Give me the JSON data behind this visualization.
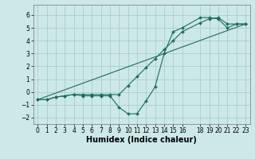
{
  "background_color": "#cce8e8",
  "grid_color": "#aacece",
  "line_color": "#1a6e60",
  "xlabel": "Humidex (Indice chaleur)",
  "xlabel_fontsize": 7,
  "tick_fontsize": 5.5,
  "xlim": [
    -0.5,
    23.5
  ],
  "ylim": [
    -2.5,
    6.8
  ],
  "yticks": [
    -2,
    -1,
    0,
    1,
    2,
    3,
    4,
    5,
    6
  ],
  "xticks": [
    0,
    1,
    2,
    3,
    4,
    5,
    6,
    7,
    8,
    9,
    10,
    11,
    12,
    13,
    14,
    15,
    16,
    18,
    19,
    20,
    21,
    22,
    23
  ],
  "line1_x": [
    0,
    1,
    2,
    3,
    4,
    5,
    6,
    7,
    8,
    9,
    10,
    11,
    12,
    13,
    14,
    15,
    16,
    18,
    19,
    20,
    21,
    22,
    23
  ],
  "line1_y": [
    -0.6,
    -0.6,
    -0.4,
    -0.3,
    -0.2,
    -0.3,
    -0.3,
    -0.3,
    -0.3,
    -1.2,
    -1.7,
    -1.7,
    -0.7,
    0.4,
    3.0,
    4.7,
    5.0,
    5.8,
    5.8,
    5.7,
    5.0,
    5.3,
    5.3
  ],
  "line2_x": [
    0,
    1,
    2,
    3,
    4,
    5,
    6,
    7,
    8,
    9,
    10,
    11,
    12,
    13,
    14,
    15,
    16,
    18,
    19,
    20,
    21,
    22,
    23
  ],
  "line2_y": [
    -0.6,
    -0.6,
    -0.4,
    -0.3,
    -0.2,
    -0.2,
    -0.2,
    -0.2,
    -0.2,
    -0.2,
    0.5,
    1.2,
    1.9,
    2.6,
    3.3,
    4.0,
    4.7,
    5.4,
    5.7,
    5.8,
    5.3,
    5.3,
    5.3
  ],
  "line3_x": [
    0,
    23
  ],
  "line3_y": [
    -0.6,
    5.3
  ]
}
